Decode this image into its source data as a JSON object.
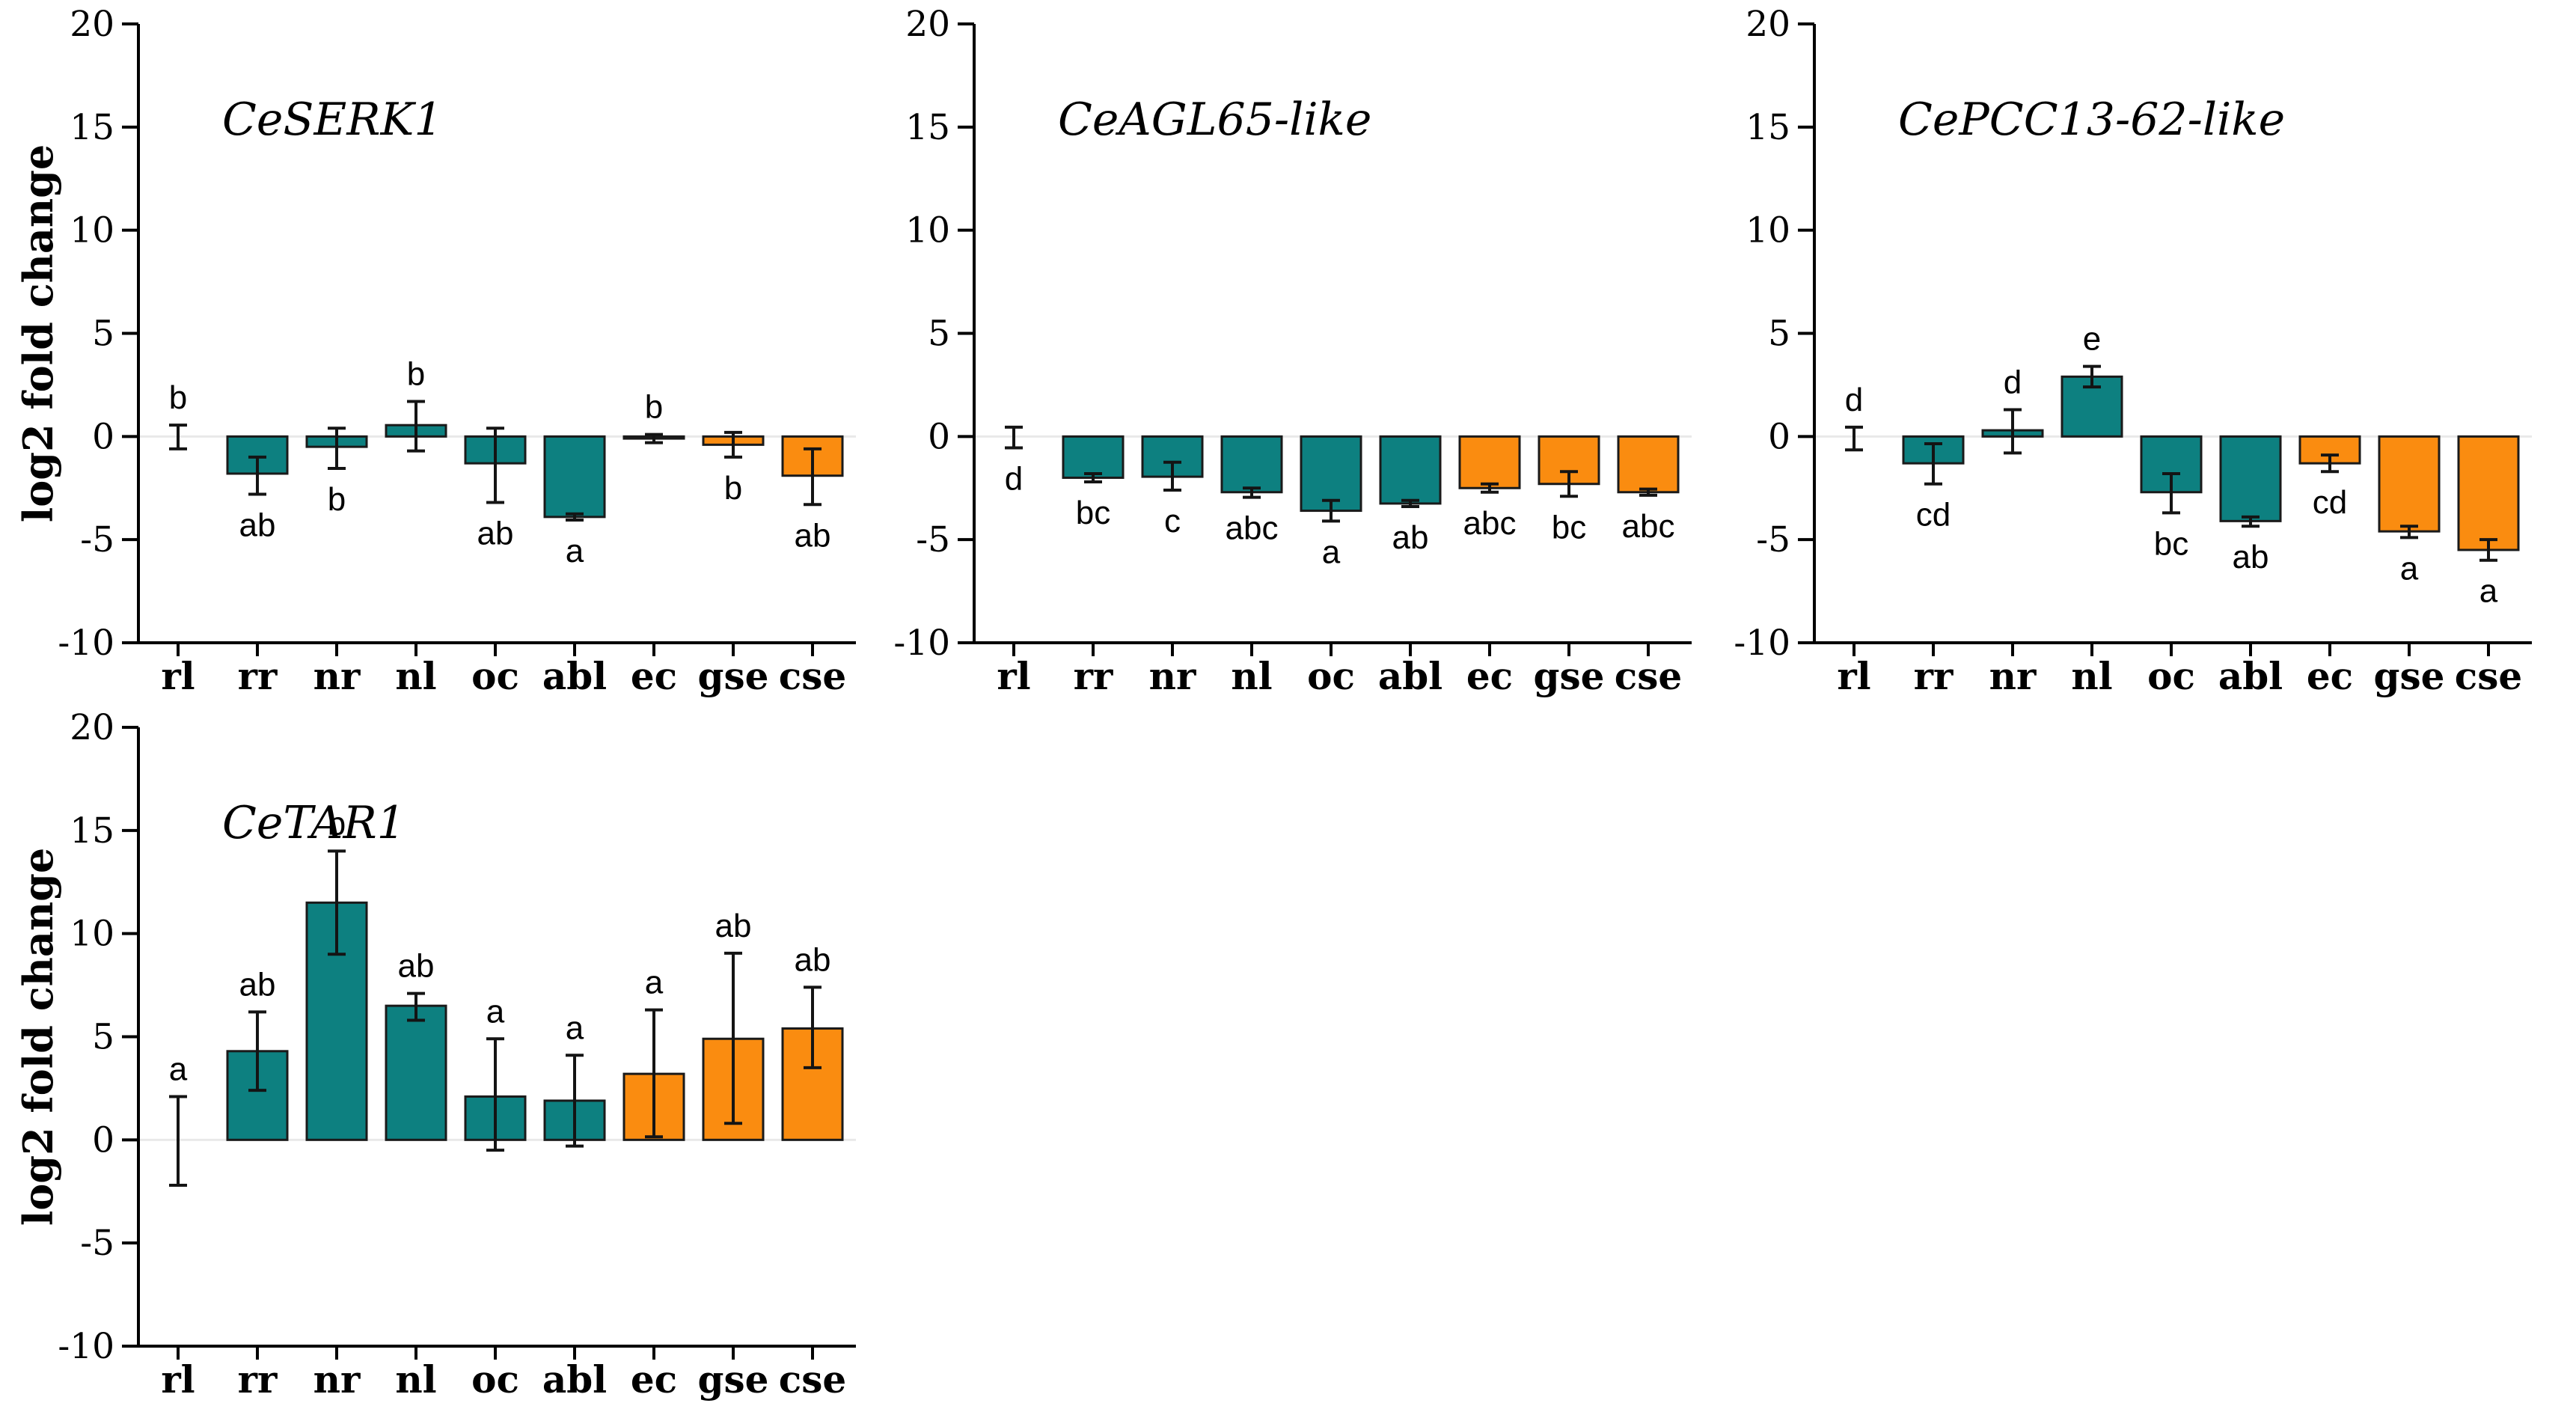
{
  "figure": {
    "ylabel": "log2 fold change",
    "categories": [
      "rl",
      "rr",
      "nr",
      "nl",
      "oc",
      "abl",
      "ec",
      "gse",
      "cse"
    ],
    "yticks": [
      20,
      15,
      10,
      5,
      0,
      -5,
      -10
    ],
    "ylim": [
      -10,
      20
    ],
    "colors": {
      "teal": "#0D8080",
      "orange": "#FA8C10",
      "bar_border": "#1a1a1a",
      "error_bar": "#141414",
      "axis": "#000000",
      "zero_line": "#e9e9e9",
      "background": "#ffffff",
      "text": "#000000"
    },
    "category_color_groups": [
      "none",
      "teal",
      "teal",
      "teal",
      "teal",
      "teal",
      "orange",
      "orange",
      "orange"
    ]
  },
  "chart_data": [
    {
      "type": "bar",
      "title": "CeSERK1",
      "ylabel": "log2 fold change",
      "show_ylabel": true,
      "categories": [
        "rl",
        "rr",
        "nr",
        "nl",
        "oc",
        "abl",
        "ec",
        "gse",
        "cse"
      ],
      "values": [
        0,
        -1.8,
        -0.5,
        0.55,
        -1.3,
        -3.9,
        -0.1,
        -0.4,
        -1.9
      ],
      "error_low": [
        -0.6,
        -2.8,
        -1.55,
        -0.7,
        -3.2,
        -4.05,
        -0.3,
        -1.0,
        -3.3
      ],
      "error_high": [
        0.55,
        -1.0,
        0.4,
        1.7,
        0.4,
        -3.75,
        0.1,
        0.2,
        -0.6
      ],
      "letters": [
        "b",
        "ab",
        "b",
        "b",
        "ab",
        "a",
        "b",
        "b",
        "ab"
      ],
      "letter_positions": [
        "above",
        "below",
        "below",
        "above",
        "below",
        "below",
        "above",
        "below",
        "below"
      ],
      "bar_colors": [
        "none",
        "teal",
        "teal",
        "teal",
        "teal",
        "teal",
        "orange",
        "orange",
        "orange"
      ],
      "ylim": [
        -10,
        20
      ],
      "yticks": [
        20,
        15,
        10,
        5,
        0,
        -5,
        -10
      ]
    },
    {
      "type": "bar",
      "title": "CeAGL65-like",
      "ylabel": "log2 fold change",
      "show_ylabel": false,
      "categories": [
        "rl",
        "rr",
        "nr",
        "nl",
        "oc",
        "abl",
        "ec",
        "gse",
        "cse"
      ],
      "values": [
        0,
        -2.0,
        -1.95,
        -2.7,
        -3.6,
        -3.25,
        -2.5,
        -2.3,
        -2.7
      ],
      "error_low": [
        -0.55,
        -2.2,
        -2.6,
        -2.95,
        -4.1,
        -3.4,
        -2.7,
        -2.9,
        -2.85
      ],
      "error_high": [
        0.45,
        -1.8,
        -1.25,
        -2.5,
        -3.1,
        -3.1,
        -2.3,
        -1.7,
        -2.55
      ],
      "letters": [
        "d",
        "bc",
        "c",
        "abc",
        "a",
        "ab",
        "abc",
        "bc",
        "abc"
      ],
      "letter_positions": [
        "below",
        "below",
        "below",
        "below",
        "below",
        "below",
        "below",
        "below",
        "below"
      ],
      "bar_colors": [
        "none",
        "teal",
        "teal",
        "teal",
        "teal",
        "teal",
        "orange",
        "orange",
        "orange"
      ],
      "ylim": [
        -10,
        20
      ],
      "yticks": [
        20,
        15,
        10,
        5,
        0,
        -5,
        -10
      ]
    },
    {
      "type": "bar",
      "title": "CePCC13-62-like",
      "ylabel": "log2 fold change",
      "show_ylabel": false,
      "categories": [
        "rl",
        "rr",
        "nr",
        "nl",
        "oc",
        "abl",
        "ec",
        "gse",
        "cse"
      ],
      "values": [
        0,
        -1.3,
        0.3,
        2.9,
        -2.7,
        -4.1,
        -1.3,
        -4.6,
        -5.5
      ],
      "error_low": [
        -0.65,
        -2.3,
        -0.8,
        2.4,
        -3.7,
        -4.35,
        -1.7,
        -4.9,
        -6.0
      ],
      "error_high": [
        0.45,
        -0.35,
        1.3,
        3.4,
        -1.8,
        -3.9,
        -0.9,
        -4.35,
        -5.0
      ],
      "letters": [
        "d",
        "cd",
        "d",
        "e",
        "bc",
        "ab",
        "cd",
        "a",
        "a"
      ],
      "letter_positions": [
        "above",
        "below",
        "above",
        "above",
        "below",
        "below",
        "below",
        "below",
        "below"
      ],
      "bar_colors": [
        "none",
        "teal",
        "teal",
        "teal",
        "teal",
        "teal",
        "orange",
        "orange",
        "orange"
      ],
      "ylim": [
        -10,
        20
      ],
      "yticks": [
        20,
        15,
        10,
        5,
        0,
        -5,
        -10
      ]
    },
    {
      "type": "bar",
      "title": "CeTAR1",
      "ylabel": "log2 fold change",
      "show_ylabel": true,
      "categories": [
        "rl",
        "rr",
        "nr",
        "nl",
        "oc",
        "abl",
        "ec",
        "gse",
        "cse"
      ],
      "values": [
        0,
        4.3,
        11.5,
        6.5,
        2.1,
        1.9,
        3.2,
        4.9,
        5.4
      ],
      "error_low": [
        -2.2,
        2.4,
        9.0,
        5.8,
        -0.5,
        -0.3,
        0.15,
        0.8,
        3.5
      ],
      "error_high": [
        2.1,
        6.2,
        14.0,
        7.1,
        4.9,
        4.1,
        6.3,
        9.05,
        7.4
      ],
      "letters": [
        "a",
        "ab",
        "b",
        "ab",
        "a",
        "a",
        "a",
        "ab",
        "ab"
      ],
      "letter_positions": [
        "above",
        "above",
        "above",
        "above",
        "above",
        "above",
        "above",
        "above",
        "above"
      ],
      "bar_colors": [
        "none",
        "teal",
        "teal",
        "teal",
        "teal",
        "teal",
        "orange",
        "orange",
        "orange"
      ],
      "ylim": [
        -10,
        20
      ],
      "yticks": [
        20,
        15,
        10,
        5,
        0,
        -5,
        -10
      ]
    }
  ]
}
